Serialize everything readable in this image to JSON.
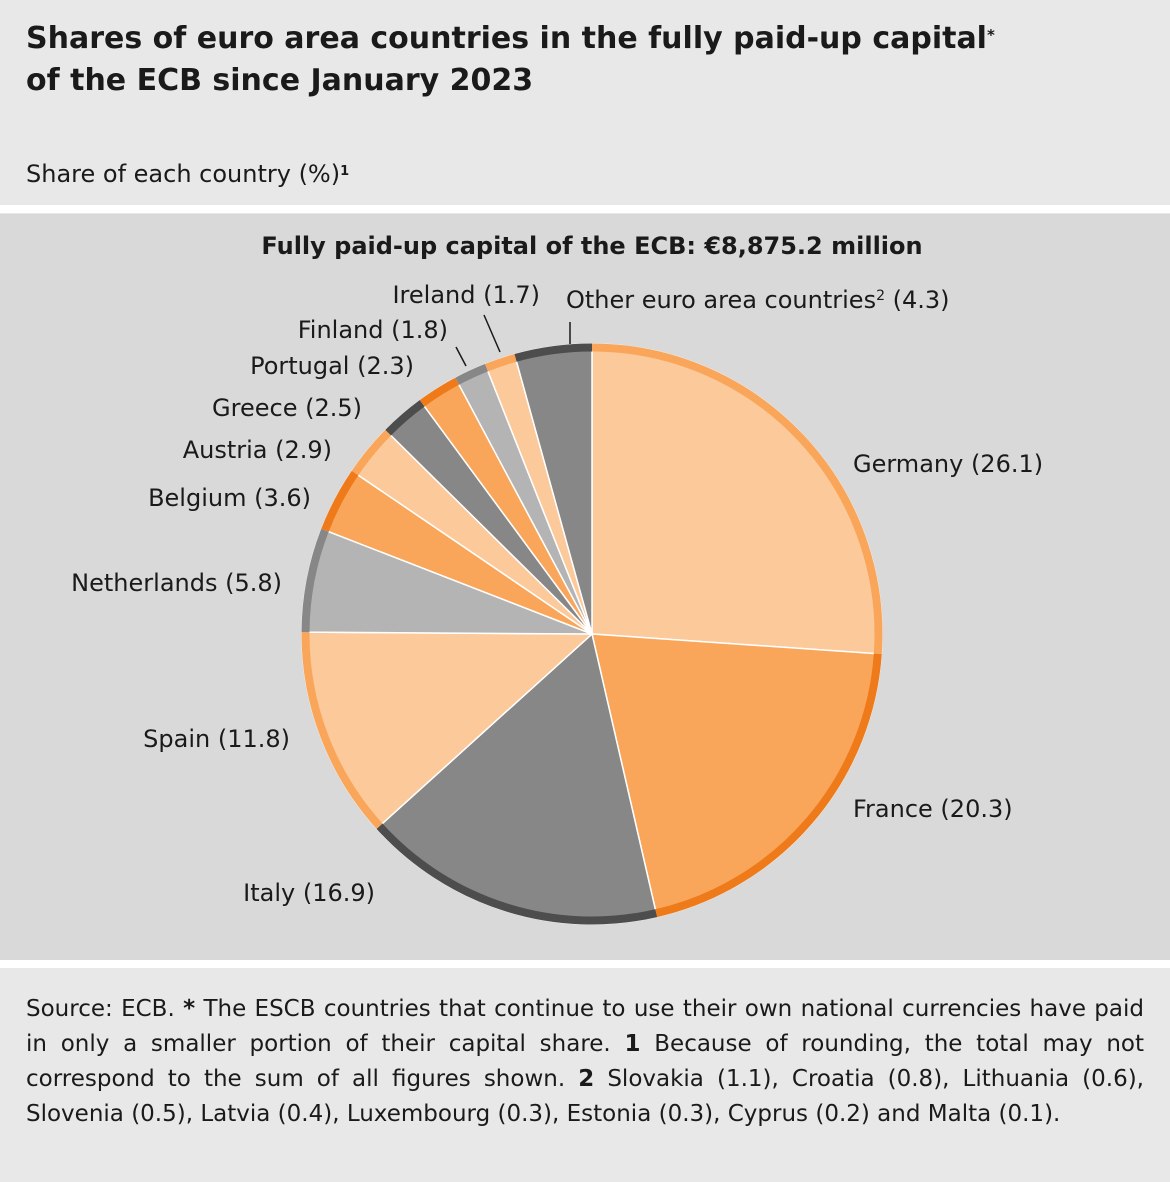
{
  "header": {
    "title_line1": "Shares of euro area countries in the fully paid-up capital",
    "title_marker": "*",
    "title_line2": "of the ECB since January 2023",
    "subtitle": "Share of each country (%)",
    "subtitle_marker": "1"
  },
  "chart_data": {
    "type": "pie",
    "title": "Fully paid-up capital of the ECB: €8,875.2 million",
    "start": "12 o'clock",
    "direction": "clockwise",
    "slices": [
      {
        "label": "Germany",
        "value": 26.1,
        "fill": "#fcc99b",
        "edge": "#f9a65a",
        "display": "Germany (26.1)"
      },
      {
        "label": "France",
        "value": 20.3,
        "fill": "#f9a65a",
        "edge": "#ee7a1a",
        "display": "France (20.3)"
      },
      {
        "label": "Italy",
        "value": 16.9,
        "fill": "#878787",
        "edge": "#4d4d4d",
        "display": "Italy (16.9)"
      },
      {
        "label": "Spain",
        "value": 11.8,
        "fill": "#fcc99b",
        "edge": "#f9a65a",
        "display": "Spain (11.8)"
      },
      {
        "label": "Netherlands",
        "value": 5.8,
        "fill": "#b4b4b4",
        "edge": "#878787",
        "display": "Netherlands (5.8)"
      },
      {
        "label": "Belgium",
        "value": 3.6,
        "fill": "#f9a65a",
        "edge": "#ee7a1a",
        "display": "Belgium (3.6)"
      },
      {
        "label": "Austria",
        "value": 2.9,
        "fill": "#fcc99b",
        "edge": "#f9a65a",
        "display": "Austria (2.9)"
      },
      {
        "label": "Greece",
        "value": 2.5,
        "fill": "#878787",
        "edge": "#4d4d4d",
        "display": "Greece (2.5)"
      },
      {
        "label": "Portugal",
        "value": 2.3,
        "fill": "#f9a65a",
        "edge": "#ee7a1a",
        "display": "Portugal (2.3)"
      },
      {
        "label": "Finland",
        "value": 1.8,
        "fill": "#b4b4b4",
        "edge": "#878787",
        "display": "Finland (1.8)"
      },
      {
        "label": "Ireland",
        "value": 1.7,
        "fill": "#fcc99b",
        "edge": "#f9a65a",
        "display": "Ireland (1.7)"
      },
      {
        "label": "Other euro area countries",
        "value": 4.3,
        "fill": "#878787",
        "edge": "#4d4d4d",
        "display": "Other euro area countries",
        "display_marker": "2",
        "display_value": "(4.3)"
      }
    ]
  },
  "footer": {
    "source": "Source: ECB.",
    "note_star_marker": "*",
    "note_star": "The ESCB countries that continue to use their own national currencies have paid in only a smaller portion of their capital share.",
    "note1_marker": "1",
    "note1": "Because of rounding, the total may not correspond to the sum of all figures shown.",
    "note2_marker": "2",
    "note2": "Slovakia (1.1), Croatia (0.8), Lithuania (0.6), Slovenia (0.5), Latvia (0.4), Luxembourg (0.3), Estonia (0.3), Cyprus (0.2) and Malta (0.1)."
  },
  "colors": {
    "header_bg": "#e8e8e8",
    "panel_bg": "#d9d9d9",
    "divider": "#ffffff"
  }
}
